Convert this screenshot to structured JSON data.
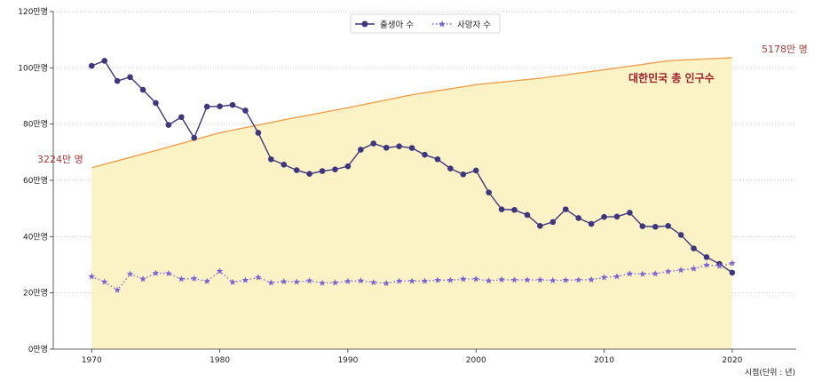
{
  "chart_data": {
    "type": "line",
    "x": [
      1970,
      1971,
      1972,
      1973,
      1974,
      1975,
      1976,
      1977,
      1978,
      1979,
      1980,
      1981,
      1982,
      1983,
      1984,
      1985,
      1986,
      1987,
      1988,
      1989,
      1990,
      1991,
      1992,
      1993,
      1994,
      1995,
      1996,
      1997,
      1998,
      1999,
      2000,
      2001,
      2002,
      2003,
      2004,
      2005,
      2006,
      2007,
      2008,
      2009,
      2010,
      2011,
      2012,
      2013,
      2014,
      2015,
      2016,
      2017,
      2018,
      2019,
      2020
    ],
    "series": [
      {
        "name": "출생아 수",
        "style": "solid-circle",
        "color": "#3f3680",
        "values": [
          100.7,
          102.5,
          95.3,
          96.7,
          92.2,
          87.5,
          79.7,
          82.5,
          75.1,
          86.2,
          86.3,
          86.8,
          84.8,
          76.9,
          67.5,
          65.6,
          63.6,
          62.3,
          63.3,
          63.9,
          65.0,
          70.9,
          73.1,
          71.6,
          72.1,
          71.5,
          69.1,
          67.5,
          64.2,
          62.1,
          63.5,
          55.7,
          49.7,
          49.5,
          47.7,
          43.8,
          45.2,
          49.7,
          46.6,
          44.5,
          47.0,
          47.1,
          48.5,
          43.7,
          43.5,
          43.8,
          40.6,
          35.8,
          32.7,
          30.3,
          27.2
        ]
      },
      {
        "name": "사망자 수",
        "style": "dotted-star",
        "color": "#7b63d6",
        "values": [
          25.8,
          23.9,
          21.0,
          26.7,
          24.9,
          27.0,
          26.9,
          24.9,
          25.1,
          24.1,
          27.7,
          23.8,
          24.5,
          25.5,
          23.6,
          24.0,
          23.9,
          24.3,
          23.5,
          23.6,
          24.1,
          24.3,
          23.7,
          23.4,
          24.2,
          24.2,
          24.2,
          24.5,
          24.5,
          24.9,
          24.9,
          24.3,
          24.7,
          24.6,
          24.6,
          24.6,
          24.4,
          24.5,
          24.6,
          24.7,
          25.5,
          25.8,
          26.8,
          26.7,
          26.8,
          27.6,
          28.1,
          28.6,
          29.9,
          29.5,
          30.5
        ]
      },
      {
        "name": "대한민국 총 인구수",
        "style": "area",
        "color": "#f0a050",
        "fill": "#fbf3c6",
        "x": [
          1970,
          1975,
          1980,
          1985,
          1990,
          1995,
          2000,
          2005,
          2010,
          2015,
          2020
        ],
        "values": [
          64.5,
          70.6,
          76.9,
          81.5,
          85.8,
          90.4,
          94.0,
          96.3,
          99.3,
          102.5,
          103.6
        ]
      }
    ],
    "xticks": [
      1970,
      1980,
      1990,
      2000,
      2010,
      2020
    ],
    "yticks": [
      "0만명",
      "20만명",
      "40만명",
      "60만명",
      "80만명",
      "100만명",
      "120만명"
    ],
    "ytick_values": [
      0,
      20,
      40,
      60,
      80,
      100,
      120
    ],
    "xlim": [
      1967,
      2025
    ],
    "ylim": [
      0,
      120
    ],
    "xlabel": "시점(단위 : 년)",
    "ylabel": "",
    "grid": "horizontal dotted",
    "legend_position": "top-center",
    "annotations": {
      "start_pop": "3224만 명",
      "end_pop": "5178만 명",
      "area_title": "대한민국 총 인구수"
    }
  }
}
